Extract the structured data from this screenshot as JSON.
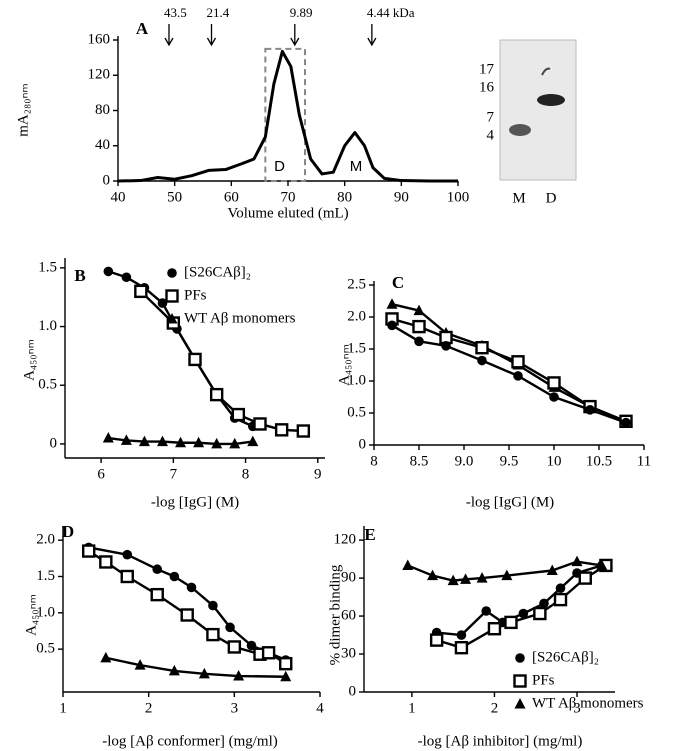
{
  "chart_data": [
    {
      "type": "line",
      "panel": "A",
      "ylabel": "mA₂₈₀ₙₘ",
      "xlabel": "Volume eluted (mL)",
      "xlim": [
        40,
        100
      ],
      "ylim": [
        0,
        160
      ],
      "xticks": [
        40,
        50,
        60,
        70,
        80,
        90,
        100
      ],
      "yticks": [
        0,
        40,
        80,
        120,
        160
      ],
      "annotations": [
        {
          "x": 49,
          "text": "43.5"
        },
        {
          "x": 56.5,
          "text": "21.4"
        },
        {
          "x": 71.2,
          "text": "9.89"
        },
        {
          "x": 84.8,
          "text": "4.44 kDa"
        }
      ],
      "peak_labels": [
        {
          "x": 68.5,
          "y": 16,
          "text": "D"
        },
        {
          "x": 82,
          "y": 16,
          "text": "M"
        }
      ],
      "highlight_x": [
        66,
        73
      ],
      "series": [
        {
          "color": "#000000",
          "x": [
            40,
            44,
            47,
            50,
            53,
            56,
            59,
            62,
            64,
            66,
            67.5,
            69,
            70.5,
            72,
            74,
            76,
            78,
            80,
            81.8,
            83.5,
            85,
            87,
            90,
            95,
            100
          ],
          "values": [
            0,
            0.5,
            4,
            2,
            6,
            12,
            13,
            20,
            25,
            50,
            110,
            147,
            130,
            75,
            25,
            8,
            10,
            40,
            55,
            40,
            15,
            3,
            0.5,
            0,
            0
          ]
        }
      ]
    },
    {
      "type": "scatter",
      "panel": "B",
      "ylabel": "A₄₅₀ₙₘ",
      "xlabel": "-log [IgG] (M)",
      "legend": true,
      "xlim": [
        5.5,
        9.1
      ],
      "ylim": [
        -0.12,
        1.55
      ],
      "xticks": [
        6,
        7,
        8,
        9
      ],
      "yticks": [
        0,
        0.5,
        {
          "value": 1,
          "label": "1.0"
        },
        1.5
      ],
      "series": [
        {
          "name": "[S26CAβ]₂",
          "marker": "circle",
          "x": [
            6.1,
            6.35,
            6.6,
            6.85,
            7.05,
            7.3,
            7.6,
            7.85,
            8.1
          ],
          "values": [
            1.47,
            1.42,
            1.33,
            1.2,
            0.98,
            0.72,
            0.42,
            0.22,
            0.15
          ]
        },
        {
          "name": "PFs",
          "marker": "square",
          "x": [
            6.55,
            7.0,
            7.3,
            7.6,
            7.9,
            8.2,
            8.5,
            8.8
          ],
          "values": [
            1.3,
            1.03,
            0.72,
            0.42,
            0.25,
            0.17,
            0.12,
            0.11
          ]
        },
        {
          "name": "WT Aβ monomers",
          "marker": "triangle",
          "x": [
            6.1,
            6.35,
            6.6,
            6.85,
            7.1,
            7.35,
            7.6,
            7.85,
            8.1
          ],
          "values": [
            0.05,
            0.03,
            0.02,
            0.02,
            0.01,
            0.01,
            0,
            0,
            0.02
          ]
        }
      ]
    },
    {
      "type": "scatter",
      "panel": "C",
      "ylabel": "A₄₅₀ₙₘ",
      "xlabel": "-log [IgG] (M)",
      "xlim": [
        8,
        11
      ],
      "ylim": [
        0,
        2.5
      ],
      "xticks": [
        8,
        8.5,
        {
          "value": 9,
          "label": "9.0"
        },
        9.5,
        10,
        10.5,
        11
      ],
      "yticks": [
        0,
        0.5,
        {
          "value": 1,
          "label": "1.0"
        },
        1.5,
        {
          "value": 2,
          "label": "2.0"
        },
        2.5
      ],
      "series": [
        {
          "marker": "triangle",
          "x": [
            8.2,
            8.5,
            8.8,
            9.2,
            9.6,
            10,
            10.4,
            10.8
          ],
          "values": [
            2.2,
            2.1,
            1.75,
            1.55,
            1.25,
            0.9,
            0.6,
            0.37
          ]
        },
        {
          "marker": "square",
          "x": [
            8.2,
            8.5,
            8.8,
            9.2,
            9.6,
            10,
            10.4,
            10.8
          ],
          "values": [
            1.97,
            1.85,
            1.68,
            1.52,
            1.3,
            0.97,
            0.6,
            0.37
          ]
        },
        {
          "marker": "circle",
          "x": [
            8.2,
            8.5,
            8.8,
            9.2,
            9.6,
            10,
            10.4,
            10.8
          ],
          "values": [
            1.87,
            1.62,
            1.55,
            1.32,
            1.08,
            0.75,
            0.55,
            0.35
          ]
        }
      ]
    },
    {
      "type": "scatter",
      "panel": "D",
      "ylabel": "A₄₅₀ₙₘ",
      "xlabel": "-log [Aβ conformer] (mg/ml)",
      "xlim": [
        1,
        4
      ],
      "ylim": [
        -0.09,
        2.14
      ],
      "xticks": [
        1,
        2,
        3,
        4
      ],
      "yticks": [
        0.5,
        {
          "value": 1,
          "label": "1.0"
        },
        1.5,
        {
          "value": 2,
          "label": "2.0"
        }
      ],
      "series": [
        {
          "marker": "circle",
          "x": [
            1.3,
            1.75,
            2.1,
            2.3,
            2.5,
            2.75,
            2.95,
            3.2,
            3.4,
            3.6
          ],
          "values": [
            1.9,
            1.8,
            1.6,
            1.5,
            1.35,
            1.1,
            0.8,
            0.55,
            0.45,
            0.35
          ]
        },
        {
          "marker": "square",
          "x": [
            1.3,
            1.5,
            1.75,
            2.1,
            2.45,
            2.75,
            3.0,
            3.3,
            3.4,
            3.6
          ],
          "values": [
            1.85,
            1.7,
            1.5,
            1.25,
            0.97,
            0.7,
            0.53,
            0.43,
            0.45,
            0.3
          ]
        },
        {
          "marker": "triangle",
          "x": [
            1.5,
            1.9,
            2.3,
            2.65,
            3.05,
            3.6
          ],
          "values": [
            0.38,
            0.28,
            0.2,
            0.16,
            0.13,
            0.12
          ]
        }
      ]
    },
    {
      "type": "scatter",
      "panel": "E",
      "ylabel": "% dimer  binding",
      "xlabel": "-log [Aβ inhibitor] (mg/ml)",
      "legend": true,
      "xlim": [
        0.42,
        3.46
      ],
      "ylim": [
        0,
        128
      ],
      "xticks": [
        1,
        2,
        3
      ],
      "yticks": [
        0,
        30,
        60,
        90,
        120
      ],
      "series": [
        {
          "name": "[S26CAβ]₂",
          "marker": "circle",
          "x": [
            1.3,
            1.6,
            1.9,
            2.1,
            2.35,
            2.6,
            2.8,
            3.0,
            3.3
          ],
          "values": [
            47,
            45,
            64,
            55,
            62,
            70,
            82,
            94,
            100
          ]
        },
        {
          "name": "PFs",
          "marker": "square",
          "x": [
            1.3,
            1.6,
            2.0,
            2.2,
            2.55,
            2.8,
            3.1,
            3.35
          ],
          "values": [
            41,
            35,
            50,
            55,
            62,
            73,
            90,
            100
          ]
        },
        {
          "name": "WT Aβ monomers",
          "marker": "triangle",
          "x": [
            0.95,
            1.25,
            1.5,
            1.65,
            1.85,
            2.15,
            2.7,
            3.0,
            3.3
          ],
          "values": [
            100,
            92,
            88,
            89,
            90,
            92,
            96,
            103,
            100
          ]
        }
      ]
    }
  ],
  "gel": {
    "markers": [
      "17",
      "16",
      "7",
      "4"
    ],
    "lanes": [
      "M",
      "D"
    ]
  }
}
